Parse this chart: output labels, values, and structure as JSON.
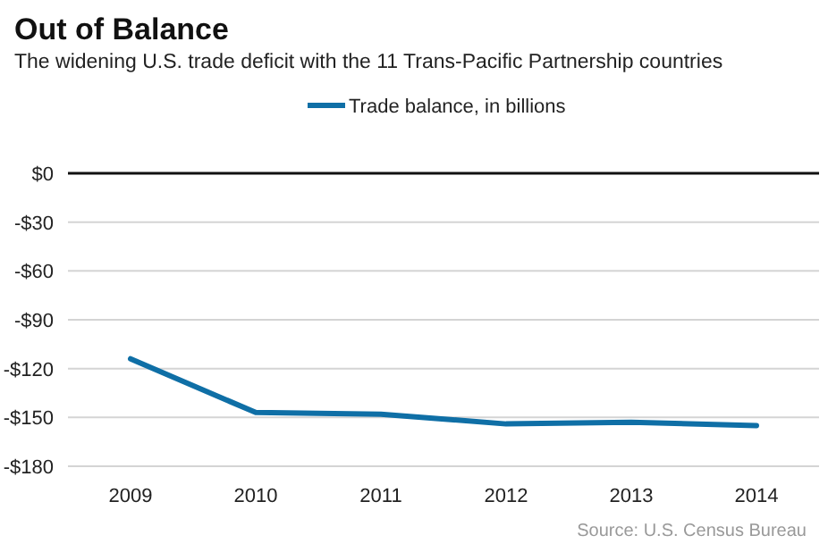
{
  "chart_data": {
    "type": "line",
    "title": "Out of Balance",
    "subtitle": "The widening U.S. trade deficit with the 11 Trans-Pacific Partnership countries",
    "categories": [
      "2009",
      "2010",
      "2011",
      "2012",
      "2013",
      "2014"
    ],
    "series": [
      {
        "name": "Trade balance, in billions",
        "color": "#0f6fa6",
        "values": [
          -114,
          -147,
          -148,
          -154,
          -153,
          -155
        ]
      }
    ],
    "ylim": [
      -180,
      0
    ],
    "yticks": [
      {
        "value": 0,
        "label": "$0"
      },
      {
        "value": -30,
        "label": "-$30"
      },
      {
        "value": -60,
        "label": "-$60"
      },
      {
        "value": -90,
        "label": "-$90"
      },
      {
        "value": -120,
        "label": "-$120"
      },
      {
        "value": -150,
        "label": "-$150"
      },
      {
        "value": -180,
        "label": "-$180"
      }
    ],
    "grid": "y",
    "legend": "top",
    "marker": "none",
    "line_style": "solid",
    "annotations": [
      "Source: U.S. Census Bureau"
    ]
  }
}
